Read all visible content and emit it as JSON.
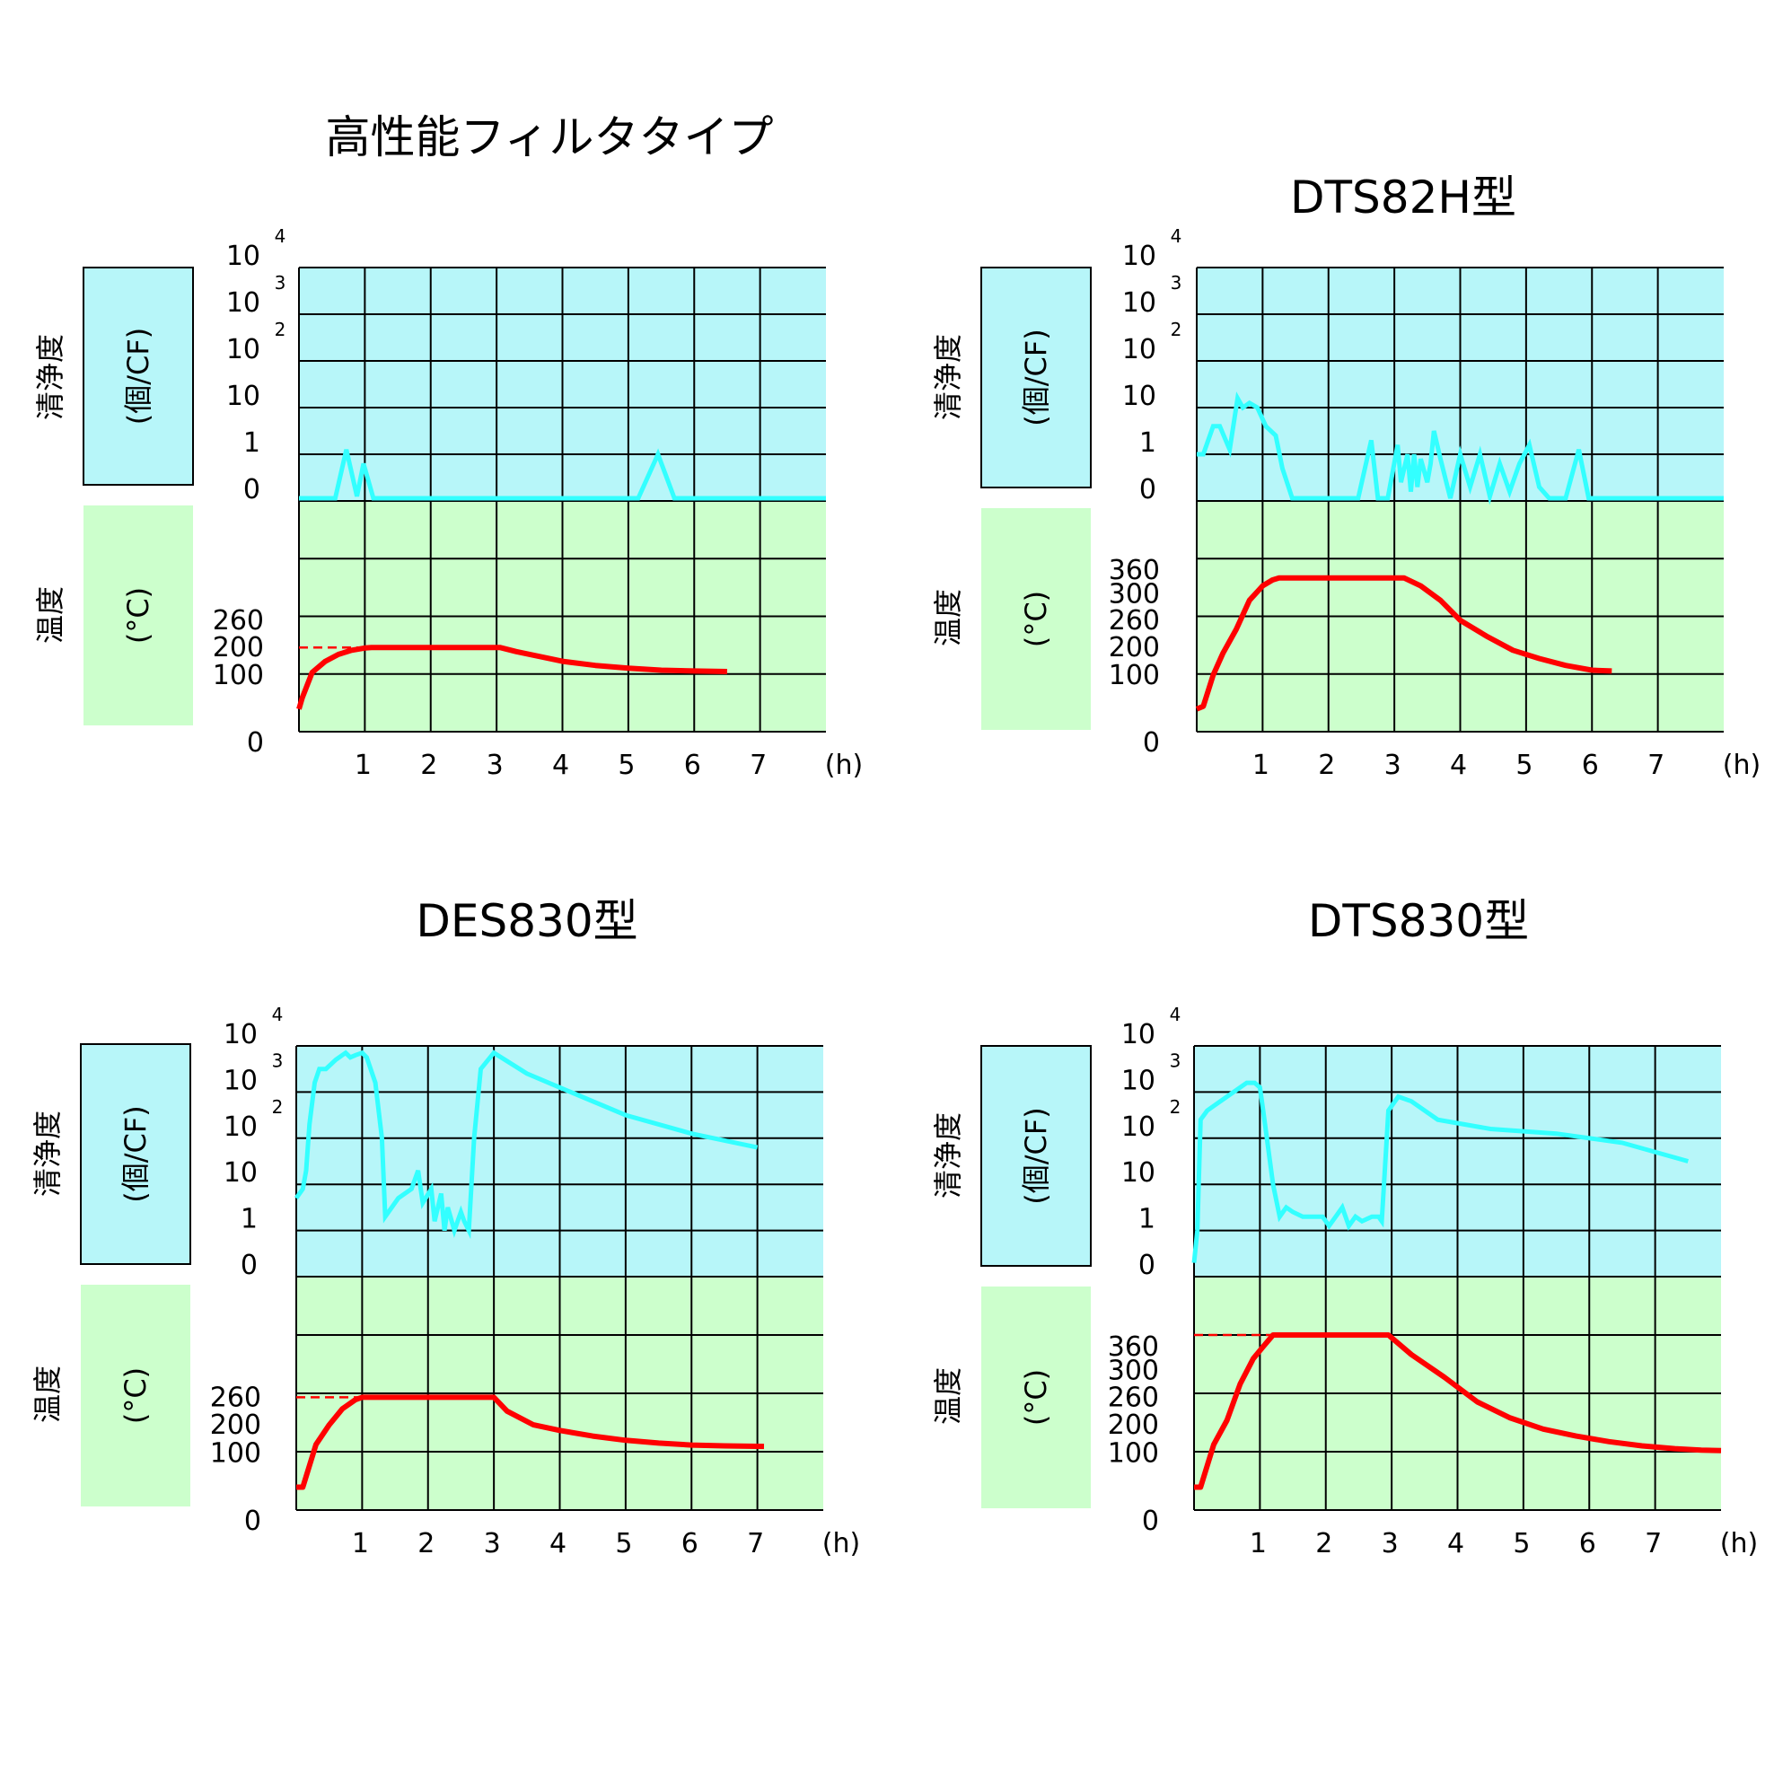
{
  "chart_data": [
    {
      "type": "line",
      "title": "高性能フィルタタイプ",
      "x_ticks": [
        "1",
        "2",
        "3",
        "4",
        "5",
        "6",
        "7"
      ],
      "x_unit": "(h)",
      "cleanliness": {
        "label": "清浄度",
        "unit": "(個/CF)",
        "ticks": [
          {
            "v": 0,
            "base": "0",
            "exp": ""
          },
          {
            "v": 1,
            "base": "1",
            "exp": ""
          },
          {
            "v": 2,
            "base": "10",
            "exp": ""
          },
          {
            "v": 3,
            "base": "10",
            "exp": "2"
          },
          {
            "v": 4,
            "base": "10",
            "exp": "3"
          },
          {
            "v": 5,
            "base": "10",
            "exp": "4"
          }
        ],
        "x": [
          0.0,
          0.55,
          0.72,
          0.88,
          0.98,
          1.13,
          5.15,
          5.45,
          5.7,
          8.0
        ],
        "y": [
          0.0,
          0.0,
          1.1,
          0.1,
          0.8,
          0.0,
          0.0,
          1.0,
          0.0,
          0.0
        ]
      },
      "temperature": {
        "label": "温度",
        "unit": "(°C)",
        "ticks": [
          {
            "label": "0",
            "pos": 0
          },
          {
            "label": "100",
            "pos": 0.245
          },
          {
            "label": "200",
            "pos": 0.365
          },
          {
            "label": "260",
            "pos": 0.483
          }
        ],
        "setpoint": 200,
        "setpoint_x_start": 0.0,
        "x": [
          0.0,
          0.05,
          0.2,
          0.4,
          0.6,
          0.8,
          1.0,
          1.1,
          3.05,
          3.3,
          3.6,
          4.0,
          4.5,
          5.0,
          5.5,
          6.0,
          6.5
        ],
        "y": [
          40,
          60,
          110,
          150,
          175,
          190,
          198,
          200,
          200,
          185,
          170,
          150,
          135,
          125,
          118,
          115,
          113
        ]
      }
    },
    {
      "type": "line",
      "title": "DTS82H型",
      "x_ticks": [
        "1",
        "2",
        "3",
        "4",
        "5",
        "6",
        "7"
      ],
      "x_unit": "(h)",
      "cleanliness": {
        "label": "清浄度",
        "unit": "(個/CF)",
        "ticks": [
          {
            "v": 0,
            "base": "0",
            "exp": ""
          },
          {
            "v": 1,
            "base": "1",
            "exp": ""
          },
          {
            "v": 2,
            "base": "10",
            "exp": ""
          },
          {
            "v": 3,
            "base": "10",
            "exp": "2"
          },
          {
            "v": 4,
            "base": "10",
            "exp": "3"
          },
          {
            "v": 5,
            "base": "10",
            "exp": "4"
          }
        ],
        "x": [
          0.0,
          0.1,
          0.25,
          0.35,
          0.5,
          0.62,
          0.7,
          0.8,
          0.92,
          1.05,
          1.2,
          1.3,
          1.45,
          2.45,
          2.65,
          2.75,
          2.9,
          3.05,
          3.1,
          3.2,
          3.25,
          3.3,
          3.35,
          3.4,
          3.5,
          3.55,
          3.6,
          3.7,
          3.85,
          4.0,
          4.15,
          4.3,
          4.45,
          4.6,
          4.75,
          4.9,
          5.05,
          5.2,
          5.35,
          5.6,
          5.8,
          5.95,
          8.0
        ],
        "y": [
          1.0,
          1.0,
          1.6,
          1.6,
          1.1,
          2.2,
          2.0,
          2.1,
          2.0,
          1.6,
          1.4,
          0.7,
          0.0,
          0.0,
          1.3,
          0.0,
          0.0,
          1.2,
          0.4,
          1.0,
          0.2,
          1.0,
          0.3,
          0.9,
          0.4,
          0.8,
          1.5,
          0.9,
          0.0,
          1.0,
          0.3,
          1.0,
          0.1,
          0.8,
          0.2,
          0.8,
          1.2,
          0.3,
          0.0,
          0.0,
          1.1,
          0.0,
          0.0
        ],
        "note": "values on log scale index: 0=0,1=1,2=10,3=10^2,4=10^3,5=10^4"
      },
      "temperature": {
        "label": "温度",
        "unit": "(°C)",
        "ticks": [
          {
            "label": "0",
            "pos": 0
          },
          {
            "label": "100",
            "pos": 0.245
          },
          {
            "label": "200",
            "pos": 0.365
          },
          {
            "label": "260",
            "pos": 0.483
          },
          {
            "label": "300",
            "pos": 0.598
          },
          {
            "label": "360",
            "pos": 0.7
          }
        ],
        "x": [
          0.0,
          0.1,
          0.25,
          0.4,
          0.6,
          0.8,
          1.0,
          1.15,
          1.25,
          3.15,
          3.4,
          3.7,
          4.0,
          4.4,
          4.8,
          5.2,
          5.6,
          6.0,
          6.3
        ],
        "y": [
          40,
          45,
          100,
          180,
          240,
          290,
          320,
          335,
          340,
          340,
          320,
          290,
          260,
          225,
          190,
          160,
          135,
          118,
          115
        ]
      }
    },
    {
      "type": "line",
      "title": "DES830型",
      "x_ticks": [
        "1",
        "2",
        "3",
        "4",
        "5",
        "6",
        "7"
      ],
      "x_unit": "(h)",
      "cleanliness": {
        "label": "清浄度",
        "unit": "(個/CF)",
        "ticks": [
          {
            "v": 0,
            "base": "0",
            "exp": ""
          },
          {
            "v": 1,
            "base": "1",
            "exp": ""
          },
          {
            "v": 2,
            "base": "10",
            "exp": ""
          },
          {
            "v": 3,
            "base": "10",
            "exp": "2"
          },
          {
            "v": 4,
            "base": "10",
            "exp": "3"
          },
          {
            "v": 5,
            "base": "10",
            "exp": "4"
          }
        ],
        "x": [
          0.0,
          0.1,
          0.15,
          0.2,
          0.28,
          0.35,
          0.45,
          0.6,
          0.75,
          0.82,
          0.9,
          1.0,
          1.07,
          1.2,
          1.3,
          1.35,
          1.55,
          1.75,
          1.85,
          1.92,
          2.05,
          2.1,
          2.2,
          2.25,
          2.3,
          2.4,
          2.5,
          2.55,
          2.62,
          2.7,
          2.8,
          3.0,
          3.5,
          4.0,
          5.0,
          6.0,
          7.0
        ],
        "y": [
          1.7,
          1.9,
          2.3,
          3.3,
          4.2,
          4.5,
          4.5,
          4.7,
          4.85,
          4.75,
          4.8,
          4.85,
          4.75,
          4.2,
          3.0,
          1.3,
          1.7,
          1.9,
          2.3,
          1.6,
          1.9,
          1.2,
          1.8,
          1.0,
          1.5,
          1.0,
          1.4,
          1.2,
          1.0,
          3.0,
          4.5,
          4.85,
          4.4,
          4.1,
          3.5,
          3.1,
          2.8
        ]
      },
      "temperature": {
        "label": "温度",
        "unit": "(°C)",
        "ticks": [
          {
            "label": "0",
            "pos": 0
          },
          {
            "label": "100",
            "pos": 0.245
          },
          {
            "label": "200",
            "pos": 0.365
          },
          {
            "label": "260",
            "pos": 0.483
          }
        ],
        "setpoint": 260,
        "setpoint_x_start": 0.0,
        "x": [
          0.0,
          0.1,
          0.3,
          0.5,
          0.7,
          0.9,
          1.0,
          3.0,
          3.2,
          3.6,
          4.0,
          4.5,
          5.0,
          5.5,
          6.0,
          6.5,
          7.1
        ],
        "y": [
          40,
          40,
          130,
          200,
          235,
          255,
          260,
          260,
          230,
          200,
          180,
          160,
          145,
          135,
          128,
          125,
          123
        ]
      }
    },
    {
      "type": "line",
      "title": "DTS830型",
      "x_ticks": [
        "1",
        "2",
        "3",
        "4",
        "5",
        "6",
        "7"
      ],
      "x_unit": "(h)",
      "cleanliness": {
        "label": "清浄度",
        "unit": "(個/CF)",
        "ticks": [
          {
            "v": 0,
            "base": "0",
            "exp": ""
          },
          {
            "v": 1,
            "base": "1",
            "exp": ""
          },
          {
            "v": 2,
            "base": "10",
            "exp": ""
          },
          {
            "v": 3,
            "base": "10",
            "exp": "2"
          },
          {
            "v": 4,
            "base": "10",
            "exp": "3"
          },
          {
            "v": 5,
            "base": "10",
            "exp": "4"
          }
        ],
        "x": [
          0.0,
          0.05,
          0.1,
          0.2,
          0.4,
          0.6,
          0.8,
          0.92,
          1.0,
          1.05,
          1.2,
          1.3,
          1.4,
          1.5,
          1.65,
          1.8,
          1.95,
          2.05,
          2.15,
          2.25,
          2.35,
          2.45,
          2.55,
          2.7,
          2.8,
          2.85,
          2.95,
          3.1,
          3.3,
          3.7,
          4.5,
          5.5,
          6.5,
          7.5
        ],
        "y": [
          0.3,
          1.0,
          3.4,
          3.6,
          3.8,
          4.0,
          4.2,
          4.2,
          4.1,
          3.6,
          2.0,
          1.3,
          1.5,
          1.4,
          1.3,
          1.3,
          1.3,
          1.1,
          1.3,
          1.5,
          1.1,
          1.3,
          1.2,
          1.3,
          1.3,
          1.2,
          3.6,
          3.9,
          3.8,
          3.4,
          3.2,
          3.1,
          2.9,
          2.5
        ]
      },
      "temperature": {
        "label": "温度",
        "unit": "(°C)",
        "ticks": [
          {
            "label": "0",
            "pos": 0
          },
          {
            "label": "100",
            "pos": 0.245
          },
          {
            "label": "200",
            "pos": 0.365
          },
          {
            "label": "260",
            "pos": 0.483
          },
          {
            "label": "300",
            "pos": 0.598
          },
          {
            "label": "360",
            "pos": 0.7
          }
        ],
        "setpoint": 380,
        "setpoint_x_start": 0.0,
        "x": [
          0.0,
          0.1,
          0.3,
          0.5,
          0.7,
          0.9,
          1.05,
          1.2,
          2.95,
          3.3,
          3.8,
          4.3,
          4.8,
          5.3,
          5.8,
          6.3,
          6.8,
          7.3,
          7.7,
          8.0
        ],
        "y": [
          40,
          40,
          130,
          210,
          280,
          330,
          360,
          380,
          380,
          340,
          290,
          250,
          215,
          185,
          160,
          140,
          125,
          115,
          110,
          108
        ]
      }
    }
  ],
  "colors": {
    "clean_bg": "#b7f6f9",
    "temp_bg": "#ccffcc",
    "clean_line": "#33ffff",
    "temp_line": "#ff0000",
    "grid": "#000000"
  }
}
